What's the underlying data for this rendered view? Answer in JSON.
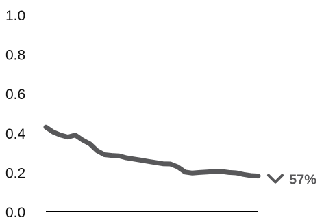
{
  "chart_data": {
    "type": "line",
    "title": "",
    "xlabel": "",
    "ylabel": "",
    "ylim": [
      0,
      1.0
    ],
    "yticks": [
      "0.0",
      "0.2",
      "0.4",
      "0.6",
      "0.8",
      "1.0"
    ],
    "ytick_values": [
      0,
      0.2,
      0.4,
      0.6,
      0.8,
      1.0
    ],
    "grid": false,
    "legend": "none",
    "series": [
      {
        "color": "#58585a",
        "values": [
          0.43,
          0.405,
          0.39,
          0.38,
          0.39,
          0.365,
          0.345,
          0.31,
          0.29,
          0.286,
          0.284,
          0.274,
          0.268,
          0.262,
          0.256,
          0.25,
          0.244,
          0.243,
          0.228,
          0.202,
          0.197,
          0.2,
          0.202,
          0.205,
          0.205,
          0.2,
          0.198,
          0.19,
          0.184,
          0.182
        ]
      }
    ],
    "change_annotation": {
      "direction": "down",
      "icon": "chevron-down-icon",
      "text": "57%",
      "color": "#58585a"
    },
    "colors": {
      "line": "#58585a",
      "tick_text": "#111111",
      "baseline": "#000000"
    }
  }
}
